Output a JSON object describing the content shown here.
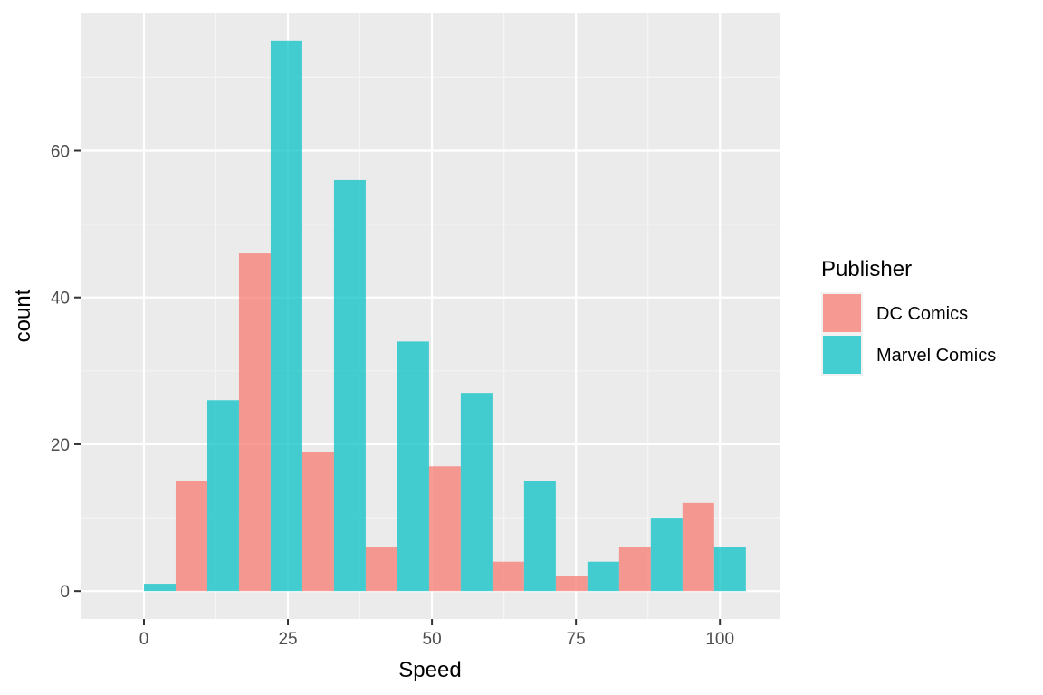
{
  "chart_data": {
    "type": "bar",
    "title": "",
    "xlabel": "Speed",
    "ylabel": "count",
    "xlim": [
      -11,
      110.5
    ],
    "ylim": [
      -3.8,
      78.8
    ],
    "xticks": [
      0,
      25,
      50,
      75,
      100
    ],
    "yticks": [
      0,
      20,
      40,
      60
    ],
    "bin_width": 11,
    "legend": {
      "title": "Publisher",
      "position": "right"
    },
    "grid": true,
    "series": [
      {
        "name": "DC Comics",
        "color": "#F8766D",
        "x": [
          11,
          22,
          33,
          44,
          55,
          66,
          77,
          88,
          99
        ],
        "values": [
          15,
          46,
          19,
          6,
          17,
          4,
          2,
          6,
          12
        ]
      },
      {
        "name": "Marvel Comics",
        "color": "#00BFC4",
        "x": [
          0,
          11,
          22,
          33,
          44,
          55,
          66,
          77,
          88,
          99
        ],
        "values": [
          1,
          26,
          75,
          56,
          34,
          27,
          15,
          4,
          10,
          6
        ]
      }
    ]
  }
}
